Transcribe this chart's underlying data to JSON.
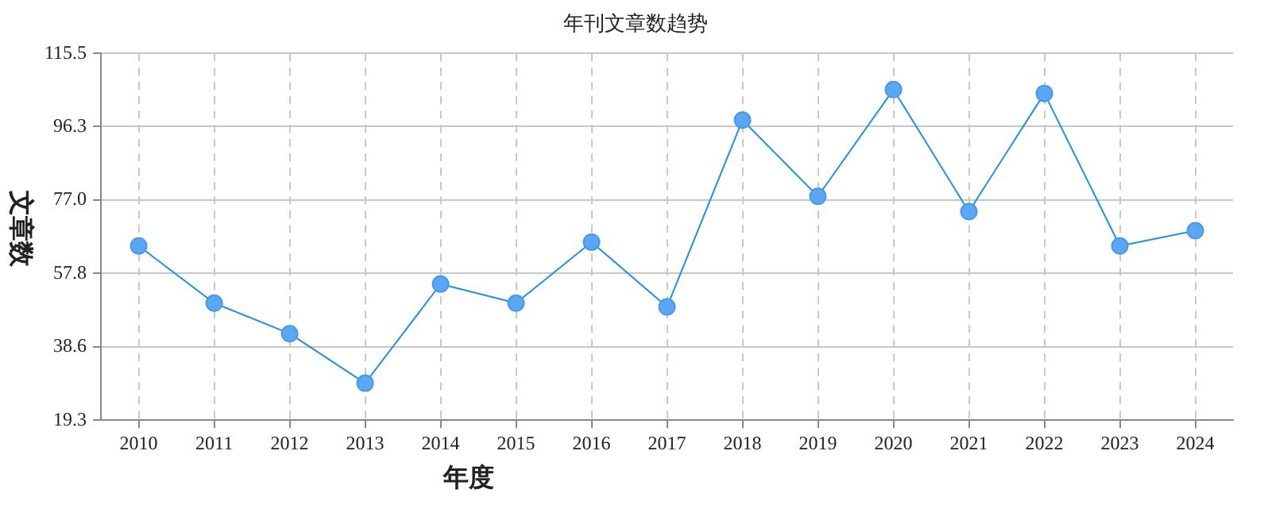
{
  "chart_data": {
    "type": "line",
    "title": "年刊文章数趋势",
    "xlabel": "年度",
    "ylabel": "文章数",
    "categories": [
      "2010",
      "2011",
      "2012",
      "2013",
      "2014",
      "2015",
      "2016",
      "2017",
      "2018",
      "2019",
      "2020",
      "2021",
      "2022",
      "2023",
      "2024"
    ],
    "series": [
      {
        "color": "#1e90e8",
        "values": [
          65,
          50,
          42,
          29,
          55,
          50,
          66,
          49,
          98,
          78,
          106,
          74,
          105,
          65,
          69
        ]
      }
    ],
    "ylim": [
      19.3,
      115.5
    ],
    "yticks": [
      19.3,
      38.6,
      57.8,
      {
        "value": 77,
        "label": "77.0"
      },
      96.3,
      115.5
    ],
    "grid": true,
    "legend": false,
    "marker": "circle",
    "line_style": "solid"
  }
}
